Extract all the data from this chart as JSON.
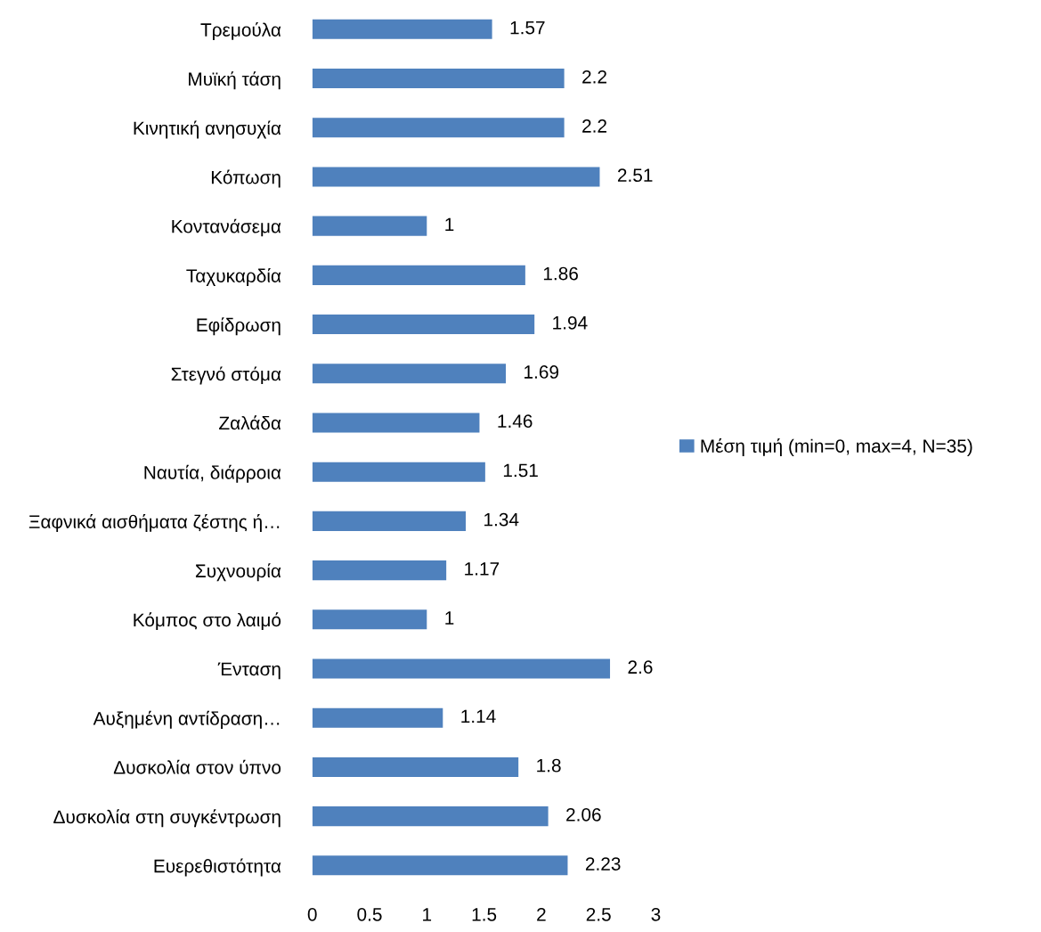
{
  "chart_data": {
    "type": "bar",
    "orientation": "horizontal",
    "categories": [
      "Τρεμούλα",
      "Μυϊκή τάση",
      "Κινητική ανησυχία",
      "Κόπωση",
      "Κοντανάσεμα",
      "Ταχυκαρδία",
      "Εφίδρωση",
      "Στεγνό στόμα",
      "Ζαλάδα",
      "Ναυτία, διάρροια",
      "Ξαφνικά αισθήματα ζέστης ή…",
      "Συχνουρία",
      "Κόμπος στο λαιμό",
      "Ένταση",
      "Αυξημένη αντίδραση…",
      "Δυσκολία στον ύπνο",
      "Δυσκολία στη συγκέντρωση",
      "Ευερεθιστότητα"
    ],
    "series": [
      {
        "name": "Μέση τιμή (min=0, max=4, N=35)",
        "color": "#4f81bd",
        "values": [
          1.57,
          2.2,
          2.2,
          2.51,
          1,
          1.86,
          1.94,
          1.69,
          1.46,
          1.51,
          1.34,
          1.17,
          1,
          2.6,
          1.14,
          1.8,
          2.06,
          2.23
        ]
      }
    ],
    "xlim": [
      0,
      3
    ],
    "xticks": [
      0,
      0.5,
      1,
      1.5,
      2,
      2.5,
      3
    ],
    "data_labels": true,
    "legend": "right",
    "grid": false
  }
}
